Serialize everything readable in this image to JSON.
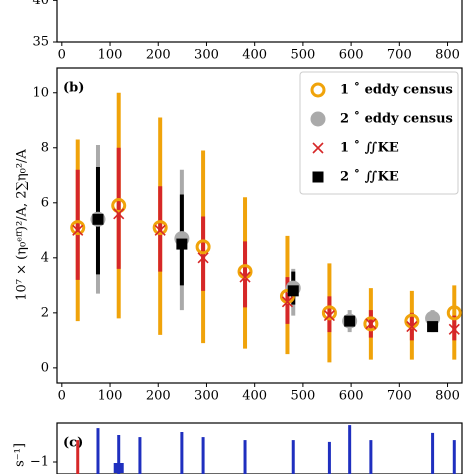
{
  "chart_data": [
    {
      "type": "axis-fragment",
      "ylim": [
        35,
        41
      ],
      "yticks": [
        35,
        40
      ],
      "xlim": [
        -10,
        830
      ],
      "xticks": [
        0,
        100,
        200,
        300,
        400,
        500,
        600,
        700,
        800
      ]
    },
    {
      "type": "errorbar",
      "panel_label": "(b)",
      "ylabel": "10⁷ × (η₀ᵉᶠᶠ)²/A, 2∑η₀²/A",
      "xlim": [
        -10,
        830
      ],
      "xticks": [
        0,
        100,
        200,
        300,
        400,
        500,
        600,
        700,
        800
      ],
      "ylim": [
        -0.55,
        10.9
      ],
      "yticks": [
        0,
        2,
        4,
        6,
        8,
        10
      ],
      "legend": "upper right",
      "series": [
        {
          "name": "1 ˚  eddy census",
          "color": "#f0a30a",
          "marker": "open-circle",
          "x": [
            33,
            118,
            204,
            293,
            380,
            468,
            555,
            641,
            726,
            814
          ],
          "values": [
            5.1,
            5.9,
            5.1,
            4.4,
            3.5,
            2.6,
            2.0,
            1.6,
            1.7,
            2.0
          ],
          "low": [
            1.7,
            1.8,
            1.2,
            0.9,
            0.7,
            0.5,
            0.2,
            0.3,
            0.3,
            0.3
          ],
          "high": [
            8.3,
            10.0,
            9.1,
            7.9,
            6.2,
            4.8,
            3.8,
            2.9,
            2.8,
            3.0
          ]
        },
        {
          "name": "2 ˚  eddy census",
          "color": "#aaaaaa",
          "marker": "circle",
          "x": [
            75,
            249,
            480,
            597,
            769
          ],
          "values": [
            5.4,
            4.7,
            2.9,
            1.7,
            1.8
          ],
          "low": [
            2.7,
            2.1,
            1.9,
            1.3,
            1.3
          ],
          "high": [
            8.1,
            7.2,
            3.6,
            2.1,
            2.1
          ]
        },
        {
          "name": "1 ˚  ∬KE",
          "color": "#d62728",
          "marker": "x",
          "x": [
            33,
            118,
            204,
            293,
            380,
            468,
            555,
            641,
            726,
            814
          ],
          "values": [
            5.0,
            5.6,
            5.0,
            4.0,
            3.3,
            2.4,
            1.9,
            1.6,
            1.5,
            1.4
          ],
          "low": [
            3.2,
            3.6,
            3.5,
            2.8,
            2.2,
            1.6,
            1.3,
            1.1,
            1.0,
            1.0
          ],
          "high": [
            7.2,
            8.0,
            6.6,
            5.5,
            4.6,
            3.3,
            2.6,
            2.1,
            2.0,
            1.9
          ]
        },
        {
          "name": "2 ˚  ∬KE",
          "color": "#000000",
          "marker": "square",
          "x": [
            75,
            249,
            480,
            597,
            769
          ],
          "values": [
            5.4,
            4.5,
            2.8,
            1.7,
            1.5
          ],
          "low": [
            3.4,
            3.0,
            2.3,
            1.5,
            1.4
          ],
          "high": [
            7.3,
            6.3,
            3.5,
            1.9,
            1.8
          ]
        }
      ]
    },
    {
      "type": "bar",
      "panel_label": "(c)",
      "ylabel": "s⁻¹]",
      "xlim": [
        -10,
        830
      ],
      "ylim": [
        -1.4,
        0.3
      ],
      "yticks": [
        {
          "value": -1,
          "label": "−1"
        }
      ],
      "series": [
        {
          "color": "#1f2fbf",
          "x": [
            75,
            118,
            162,
            249,
            293,
            380,
            480,
            555,
            597,
            641,
            769,
            814
          ],
          "values": [
            0.13,
            -0.1,
            -0.17,
            0.0,
            -0.17,
            -0.27,
            -0.27,
            -0.33,
            0.23,
            -0.27,
            -0.03,
            -0.27
          ]
        },
        {
          "color": "#d62728",
          "x": [
            33
          ],
          "values": [
            -0.27
          ]
        },
        {
          "color": "#1f2fbf",
          "marker": "square",
          "x": [
            118
          ],
          "values": [
            -1.2
          ]
        }
      ]
    }
  ]
}
